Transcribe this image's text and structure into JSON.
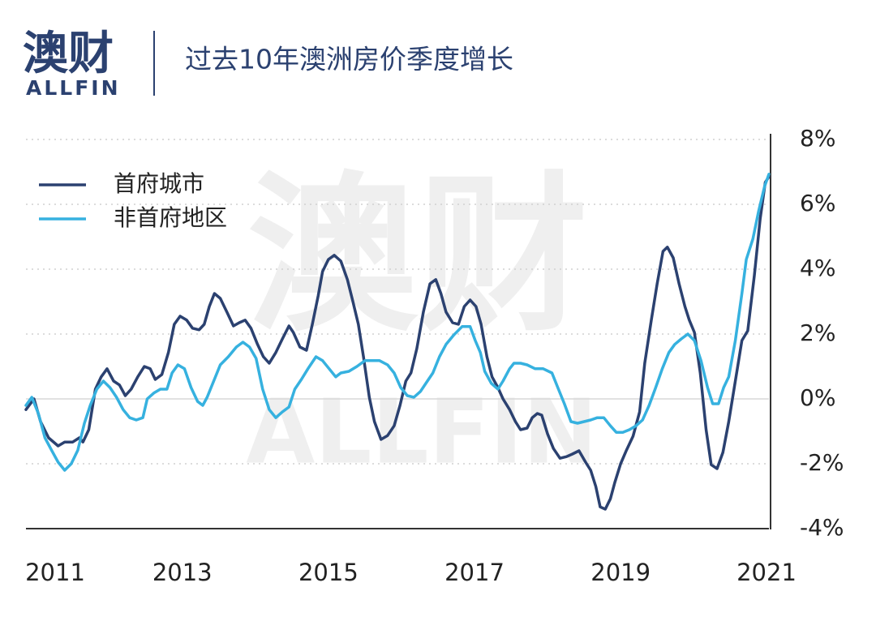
{
  "header": {
    "logo": "澳财",
    "logo_sub": "ALLFIN"
  },
  "watermark": {
    "main": "澳财",
    "sub": "ALLFIN"
  },
  "chart_data": {
    "type": "line",
    "title": "过去10年澳洲房价季度增长",
    "xlim": [
      2010.86,
      2021.03
    ],
    "xticks": [
      2011,
      2013,
      2015,
      2017,
      2019,
      2021
    ],
    "ylim": [
      -4,
      8
    ],
    "yticks": [
      {
        "value": -4,
        "label": "-4%"
      },
      {
        "value": -2,
        "label": "-2%"
      },
      {
        "value": 0,
        "label": "0%"
      },
      {
        "value": 2,
        "label": "2%"
      },
      {
        "value": 4,
        "label": "4%"
      },
      {
        "value": 6,
        "label": "6%"
      },
      {
        "value": 8,
        "label": "8%"
      }
    ],
    "grid": true,
    "legend": "top-left",
    "series": [
      {
        "name": "首府城市",
        "color": "#2b4170",
        "x": [
          2010.86,
          2010.97,
          2011.06,
          2011.17,
          2011.3,
          2011.39,
          2011.5,
          2011.59,
          2011.64,
          2011.72,
          2011.81,
          2011.89,
          2011.97,
          2012.06,
          2012.14,
          2012.22,
          2012.3,
          2012.39,
          2012.48,
          2012.56,
          2012.63,
          2012.72,
          2012.81,
          2012.89,
          2012.97,
          2013.06,
          2013.14,
          2013.23,
          2013.3,
          2013.37,
          2013.44,
          2013.52,
          2013.61,
          2013.7,
          2013.78,
          2013.86,
          2013.94,
          2014.03,
          2014.11,
          2014.19,
          2014.28,
          2014.37,
          2014.46,
          2014.52,
          2014.61,
          2014.7,
          2014.78,
          2014.86,
          2014.92,
          2015.0,
          2015.08,
          2015.17,
          2015.26,
          2015.33,
          2015.41,
          2015.48,
          2015.56,
          2015.63,
          2015.72,
          2015.81,
          2015.9,
          2015.98,
          2016.06,
          2016.13,
          2016.21,
          2016.3,
          2016.39,
          2016.47,
          2016.54,
          2016.61,
          2016.7,
          2016.78,
          2016.86,
          2016.94,
          2017.02,
          2017.09,
          2017.17,
          2017.24,
          2017.32,
          2017.39,
          2017.48,
          2017.56,
          2017.63,
          2017.72,
          2017.79,
          2017.86,
          2017.92,
          2018.0,
          2018.08,
          2018.17,
          2018.26,
          2018.34,
          2018.43,
          2018.52,
          2018.59,
          2018.66,
          2018.72,
          2018.79,
          2018.86,
          2018.92,
          2019.0,
          2019.08,
          2019.17,
          2019.26,
          2019.33,
          2019.42,
          2019.5,
          2019.58,
          2019.64,
          2019.72,
          2019.8,
          2019.88,
          2019.94,
          2020.01,
          2020.09,
          2020.17,
          2020.24,
          2020.32,
          2020.4,
          2020.48,
          2020.57,
          2020.66,
          2020.74,
          2020.83,
          2020.91,
          2020.98,
          2021.03
        ],
        "values": [
          -0.33,
          0,
          -0.7,
          -1.2,
          -1.45,
          -1.33,
          -1.33,
          -1.2,
          -1.33,
          -0.95,
          0.3,
          0.68,
          0.93,
          0.55,
          0.43,
          0.1,
          0.3,
          0.68,
          1.0,
          0.93,
          0.6,
          0.75,
          1.43,
          2.3,
          2.55,
          2.43,
          2.18,
          2.13,
          2.3,
          2.85,
          3.25,
          3.1,
          2.68,
          2.25,
          2.35,
          2.43,
          2.18,
          1.68,
          1.3,
          1.1,
          1.43,
          1.85,
          2.25,
          2.05,
          1.6,
          1.5,
          2.3,
          3.18,
          3.93,
          4.3,
          4.43,
          4.25,
          3.68,
          3.05,
          2.3,
          1.3,
          0.05,
          -0.7,
          -1.25,
          -1.13,
          -0.83,
          -0.2,
          0.55,
          0.8,
          1.55,
          2.68,
          3.55,
          3.68,
          3.25,
          2.68,
          2.35,
          2.3,
          2.85,
          3.05,
          2.85,
          2.3,
          1.3,
          0.68,
          0.35,
          0,
          -0.33,
          -0.7,
          -0.95,
          -0.9,
          -0.58,
          -0.45,
          -0.5,
          -1.08,
          -1.53,
          -1.83,
          -1.78,
          -1.7,
          -1.6,
          -1.95,
          -2.2,
          -2.7,
          -3.33,
          -3.4,
          -3.08,
          -2.58,
          -2.0,
          -1.58,
          -1.15,
          -0.4,
          1.1,
          2.43,
          3.55,
          4.55,
          4.68,
          4.35,
          3.55,
          2.85,
          2.43,
          2.05,
          0.8,
          -0.95,
          -2.03,
          -2.15,
          -1.65,
          -0.7,
          0.55,
          1.8,
          2.1,
          3.8,
          5.55,
          6.68,
          6.85
        ]
      },
      {
        "name": "非首府地区",
        "color": "#36b1df",
        "x": [
          2010.86,
          2010.94,
          2011.03,
          2011.12,
          2011.21,
          2011.3,
          2011.39,
          2011.48,
          2011.57,
          2011.66,
          2011.74,
          2011.83,
          2011.92,
          2012.01,
          2012.1,
          2012.19,
          2012.28,
          2012.37,
          2012.46,
          2012.52,
          2012.61,
          2012.7,
          2012.79,
          2012.86,
          2012.94,
          2013.03,
          2013.12,
          2013.21,
          2013.28,
          2013.34,
          2013.43,
          2013.52,
          2013.63,
          2013.74,
          2013.83,
          2013.92,
          2014.01,
          2014.1,
          2014.19,
          2014.28,
          2014.37,
          2014.46,
          2014.54,
          2014.63,
          2014.72,
          2014.83,
          2014.92,
          2015.01,
          2015.1,
          2015.17,
          2015.28,
          2015.39,
          2015.5,
          2015.61,
          2015.7,
          2015.81,
          2015.9,
          2015.99,
          2016.08,
          2016.17,
          2016.26,
          2016.34,
          2016.43,
          2016.52,
          2016.61,
          2016.72,
          2016.83,
          2016.94,
          2017.01,
          2017.08,
          2017.14,
          2017.23,
          2017.32,
          2017.39,
          2017.48,
          2017.54,
          2017.63,
          2017.72,
          2017.83,
          2017.94,
          2018.06,
          2018.14,
          2018.23,
          2018.32,
          2018.41,
          2018.5,
          2018.59,
          2018.68,
          2018.77,
          2018.86,
          2018.94,
          2019.03,
          2019.12,
          2019.21,
          2019.3,
          2019.39,
          2019.48,
          2019.57,
          2019.66,
          2019.74,
          2019.83,
          2019.92,
          2020.01,
          2020.1,
          2020.19,
          2020.26,
          2020.34,
          2020.41,
          2020.48,
          2020.57,
          2020.66,
          2020.72,
          2020.81,
          2020.89,
          2020.97,
          2021.03
        ],
        "values": [
          -0.2,
          0.05,
          -0.45,
          -1.2,
          -1.58,
          -1.95,
          -2.2,
          -2.0,
          -1.58,
          -0.75,
          -0.2,
          0.3,
          0.55,
          0.35,
          0.05,
          -0.33,
          -0.58,
          -0.65,
          -0.58,
          0,
          0.18,
          0.3,
          0.3,
          0.8,
          1.05,
          0.93,
          0.35,
          -0.08,
          -0.2,
          0.05,
          0.55,
          1.05,
          1.3,
          1.6,
          1.75,
          1.6,
          1.25,
          0.3,
          -0.33,
          -0.58,
          -0.4,
          -0.25,
          0.3,
          0.6,
          0.93,
          1.3,
          1.18,
          0.93,
          0.68,
          0.8,
          0.85,
          1.0,
          1.18,
          1.18,
          1.18,
          1.05,
          0.8,
          0.35,
          0.1,
          0.05,
          0.23,
          0.5,
          0.8,
          1.3,
          1.68,
          1.98,
          2.23,
          2.23,
          1.8,
          1.43,
          0.85,
          0.48,
          0.3,
          0.55,
          0.93,
          1.1,
          1.1,
          1.05,
          0.93,
          0.93,
          0.8,
          0.35,
          -0.15,
          -0.7,
          -0.75,
          -0.7,
          -0.65,
          -0.58,
          -0.58,
          -0.83,
          -1.03,
          -1.03,
          -0.95,
          -0.83,
          -0.65,
          -0.2,
          0.35,
          0.93,
          1.43,
          1.68,
          1.85,
          2.0,
          1.8,
          1.18,
          0.35,
          -0.15,
          -0.15,
          0.35,
          0.68,
          1.8,
          3.25,
          4.3,
          4.93,
          5.8,
          6.55,
          6.93
        ]
      }
    ]
  }
}
